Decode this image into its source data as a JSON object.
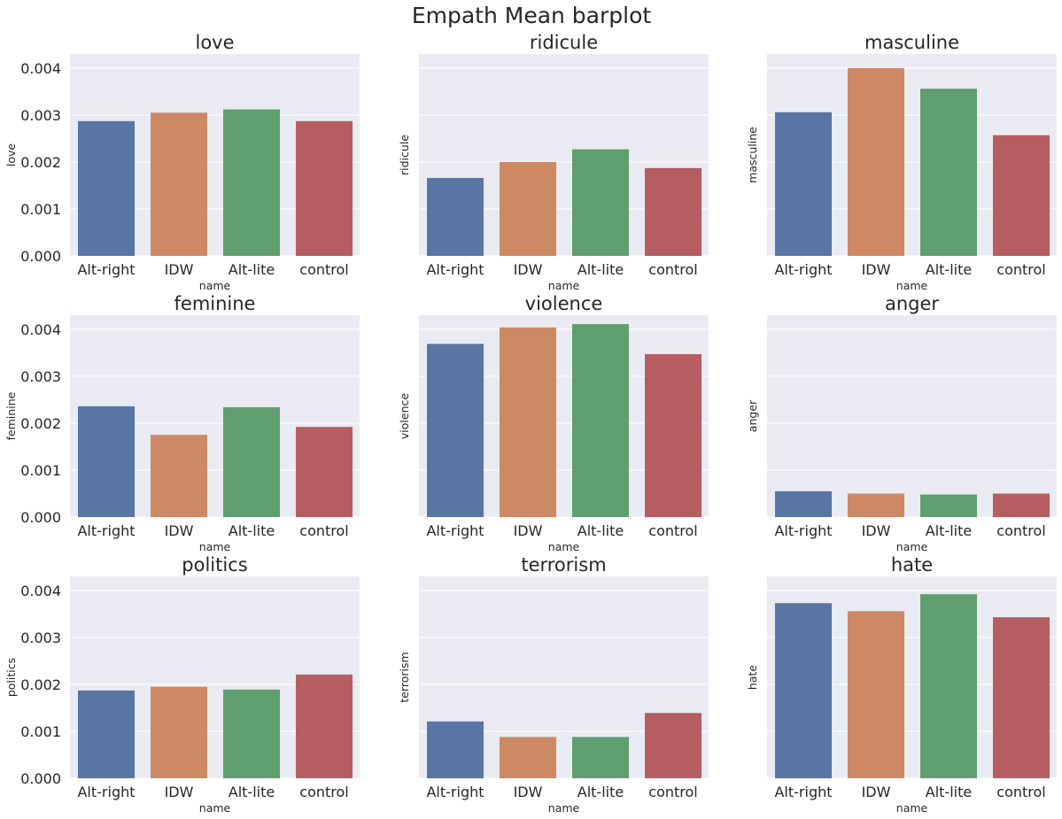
{
  "figure": {
    "title": "Empath Mean barplot"
  },
  "chart_data": [
    {
      "type": "bar",
      "title": "love",
      "xlabel": "name",
      "ylabel": "love",
      "categories": [
        "Alt-right",
        "IDW",
        "Alt-lite",
        "control"
      ],
      "values": [
        0.00287,
        0.00305,
        0.00312,
        0.00287
      ],
      "colors": [
        "#5875a4",
        "#cc8963",
        "#5f9e6e",
        "#b55d60"
      ],
      "ylim": [
        0,
        0.0043
      ],
      "yticks": [
        "0.000",
        "0.001",
        "0.002",
        "0.003",
        "0.004"
      ],
      "show_yticks": true,
      "grid": true
    },
    {
      "type": "bar",
      "title": "ridicule",
      "xlabel": "name",
      "ylabel": "ridicule",
      "categories": [
        "Alt-right",
        "IDW",
        "Alt-lite",
        "control"
      ],
      "values": [
        0.00166,
        0.002,
        0.00227,
        0.00187
      ],
      "colors": [
        "#5875a4",
        "#cc8963",
        "#5f9e6e",
        "#b55d60"
      ],
      "ylim": [
        0,
        0.0043
      ],
      "yticks": [
        "0.000",
        "0.001",
        "0.002",
        "0.003",
        "0.004"
      ],
      "show_yticks": false,
      "grid": true
    },
    {
      "type": "bar",
      "title": "masculine",
      "xlabel": "name",
      "ylabel": "masculine",
      "categories": [
        "Alt-right",
        "IDW",
        "Alt-lite",
        "control"
      ],
      "values": [
        0.00306,
        0.004,
        0.00356,
        0.00257
      ],
      "colors": [
        "#5875a4",
        "#cc8963",
        "#5f9e6e",
        "#b55d60"
      ],
      "ylim": [
        0,
        0.0043
      ],
      "yticks": [
        "0.000",
        "0.001",
        "0.002",
        "0.003",
        "0.004"
      ],
      "show_yticks": false,
      "grid": true
    },
    {
      "type": "bar",
      "title": "feminine",
      "xlabel": "name",
      "ylabel": "feminine",
      "categories": [
        "Alt-right",
        "IDW",
        "Alt-lite",
        "control"
      ],
      "values": [
        0.00236,
        0.00175,
        0.00234,
        0.00192
      ],
      "colors": [
        "#5875a4",
        "#cc8963",
        "#5f9e6e",
        "#b55d60"
      ],
      "ylim": [
        0,
        0.0043
      ],
      "yticks": [
        "0.000",
        "0.001",
        "0.002",
        "0.003",
        "0.004"
      ],
      "show_yticks": true,
      "grid": true
    },
    {
      "type": "bar",
      "title": "violence",
      "xlabel": "name",
      "ylabel": "violence",
      "categories": [
        "Alt-right",
        "IDW",
        "Alt-lite",
        "control"
      ],
      "values": [
        0.00369,
        0.00404,
        0.00411,
        0.00347
      ],
      "colors": [
        "#5875a4",
        "#cc8963",
        "#5f9e6e",
        "#b55d60"
      ],
      "ylim": [
        0,
        0.0043
      ],
      "yticks": [
        "0.000",
        "0.001",
        "0.002",
        "0.003",
        "0.004"
      ],
      "show_yticks": false,
      "grid": true
    },
    {
      "type": "bar",
      "title": "anger",
      "xlabel": "name",
      "ylabel": "anger",
      "categories": [
        "Alt-right",
        "IDW",
        "Alt-lite",
        "control"
      ],
      "values": [
        0.00055,
        0.0005,
        0.00048,
        0.0005
      ],
      "colors": [
        "#5875a4",
        "#cc8963",
        "#5f9e6e",
        "#b55d60"
      ],
      "ylim": [
        0,
        0.0043
      ],
      "yticks": [
        "0.000",
        "0.001",
        "0.002",
        "0.003",
        "0.004"
      ],
      "show_yticks": false,
      "grid": true
    },
    {
      "type": "bar",
      "title": "politics",
      "xlabel": "name",
      "ylabel": "politics",
      "categories": [
        "Alt-right",
        "IDW",
        "Alt-lite",
        "control"
      ],
      "values": [
        0.00187,
        0.00195,
        0.00189,
        0.00221
      ],
      "colors": [
        "#5875a4",
        "#cc8963",
        "#5f9e6e",
        "#b55d60"
      ],
      "ylim": [
        0,
        0.0043
      ],
      "yticks": [
        "0.000",
        "0.001",
        "0.002",
        "0.003",
        "0.004"
      ],
      "show_yticks": true,
      "grid": true
    },
    {
      "type": "bar",
      "title": "terrorism",
      "xlabel": "name",
      "ylabel": "terrorism",
      "categories": [
        "Alt-right",
        "IDW",
        "Alt-lite",
        "control"
      ],
      "values": [
        0.00121,
        0.00088,
        0.00088,
        0.00139
      ],
      "colors": [
        "#5875a4",
        "#cc8963",
        "#5f9e6e",
        "#b55d60"
      ],
      "ylim": [
        0,
        0.0043
      ],
      "yticks": [
        "0.000",
        "0.001",
        "0.002",
        "0.003",
        "0.004"
      ],
      "show_yticks": false,
      "grid": true
    },
    {
      "type": "bar",
      "title": "hate",
      "xlabel": "name",
      "ylabel": "hate",
      "categories": [
        "Alt-right",
        "IDW",
        "Alt-lite",
        "control"
      ],
      "values": [
        0.00373,
        0.00356,
        0.00392,
        0.00343
      ],
      "colors": [
        "#5875a4",
        "#cc8963",
        "#5f9e6e",
        "#b55d60"
      ],
      "ylim": [
        0,
        0.0043
      ],
      "yticks": [
        "0.000",
        "0.001",
        "0.002",
        "0.003",
        "0.004"
      ],
      "show_yticks": false,
      "grid": true
    }
  ]
}
